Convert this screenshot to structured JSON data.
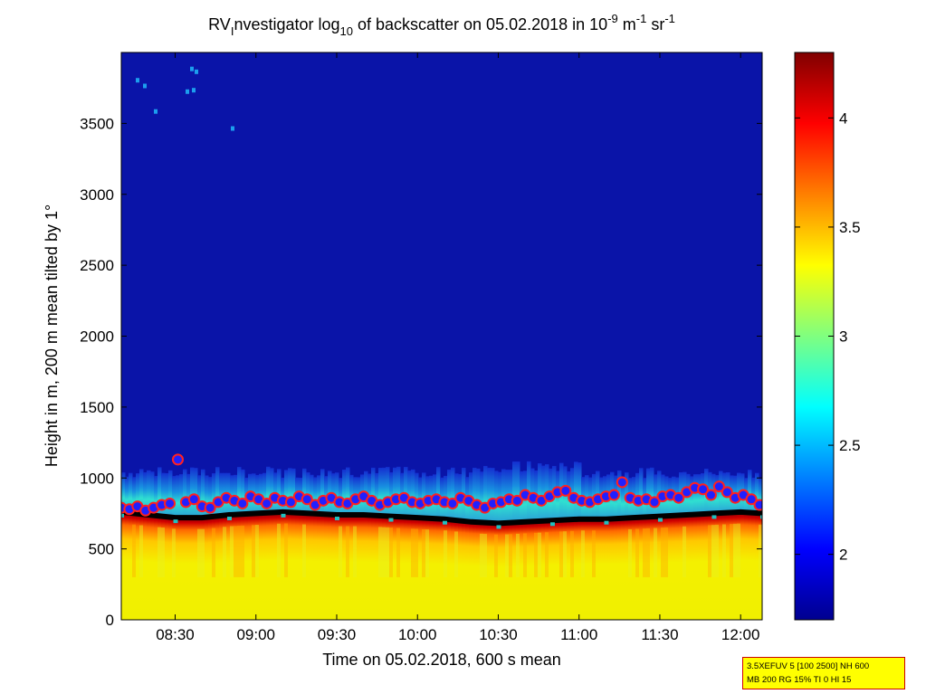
{
  "chart_data": {
    "type": "heatmap",
    "title": {
      "prefix": "RV",
      "sub_i": "I",
      "middle": "nvestigator log",
      "sub_10": "10",
      "suffix": " of backscatter on 05.02.2018 in 10",
      "exp1": "-9",
      "unit_m": " m",
      "exp2": "-1",
      "unit_sr": " sr",
      "exp3": "-1"
    },
    "xlabel": "Time on 05.02.2018, 600 s mean",
    "ylabel": "Height in m, 200 m mean tilted by 1°",
    "x_range_minutes": [
      490,
      728
    ],
    "ylim": [
      0,
      4000
    ],
    "x_ticks": [
      {
        "label": "08:30",
        "minutes": 510
      },
      {
        "label": "09:00",
        "minutes": 540
      },
      {
        "label": "09:30",
        "minutes": 570
      },
      {
        "label": "10:00",
        "minutes": 600
      },
      {
        "label": "10:30",
        "minutes": 630
      },
      {
        "label": "11:00",
        "minutes": 660
      },
      {
        "label": "11:30",
        "minutes": 690
      },
      {
        "label": "12:00",
        "minutes": 720
      }
    ],
    "y_ticks": [
      0,
      500,
      1000,
      1500,
      2000,
      2500,
      3000,
      3500
    ],
    "colorbar": {
      "range": [
        1.7,
        4.3
      ],
      "ticks": [
        "2",
        "2.5",
        "3",
        "3.5",
        "4"
      ],
      "tick_values": [
        2,
        2.5,
        3,
        3.5,
        4
      ],
      "colormap": "jet"
    },
    "series": [
      {
        "name": "mixing layer height",
        "marker": "circle",
        "color": "#ff2020",
        "x_minutes": [
          490,
          493,
          496,
          499,
          502,
          505,
          508,
          511,
          514,
          517,
          520,
          523,
          526,
          529,
          532,
          535,
          538,
          541,
          544,
          547,
          550,
          553,
          556,
          559,
          562,
          565,
          568,
          571,
          574,
          577,
          580,
          583,
          586,
          589,
          592,
          595,
          598,
          601,
          604,
          607,
          610,
          613,
          616,
          619,
          622,
          625,
          628,
          631,
          634,
          637,
          640,
          643,
          646,
          649,
          652,
          655,
          658,
          661,
          664,
          667,
          670,
          673,
          676,
          679,
          682,
          685,
          688,
          691,
          694,
          697,
          700,
          703,
          706,
          709,
          712,
          715,
          718,
          721,
          724,
          727
        ],
        "y_m": [
          790,
          780,
          800,
          770,
          790,
          810,
          820,
          1130,
          830,
          850,
          800,
          790,
          830,
          860,
          840,
          820,
          870,
          850,
          820,
          860,
          840,
          830,
          870,
          850,
          810,
          840,
          860,
          830,
          820,
          850,
          870,
          840,
          810,
          830,
          850,
          860,
          830,
          820,
          840,
          850,
          830,
          820,
          860,
          840,
          810,
          790,
          820,
          830,
          850,
          840,
          880,
          860,
          840,
          870,
          900,
          910,
          860,
          840,
          830,
          850,
          870,
          880,
          970,
          860,
          840,
          850,
          830,
          870,
          880,
          860,
          900,
          930,
          920,
          880,
          940,
          900,
          860,
          880,
          850,
          810
        ]
      },
      {
        "name": "layer base",
        "marker": "line",
        "color": "#000000",
        "x_minutes": [
          490,
          500,
          510,
          520,
          530,
          540,
          550,
          560,
          570,
          580,
          590,
          600,
          610,
          620,
          630,
          640,
          650,
          660,
          670,
          680,
          690,
          700,
          710,
          720,
          728
        ],
        "y_m": [
          760,
          740,
          720,
          720,
          740,
          750,
          760,
          750,
          740,
          740,
          730,
          720,
          710,
          690,
          680,
          690,
          700,
          710,
          710,
          720,
          730,
          740,
          750,
          760,
          750
        ]
      }
    ]
  },
  "annotation": {
    "line1": "3.5XEFUV 5 [100 2500] NH 600",
    "line2": "MB 200 RG 15% TI 0 HI 15"
  }
}
